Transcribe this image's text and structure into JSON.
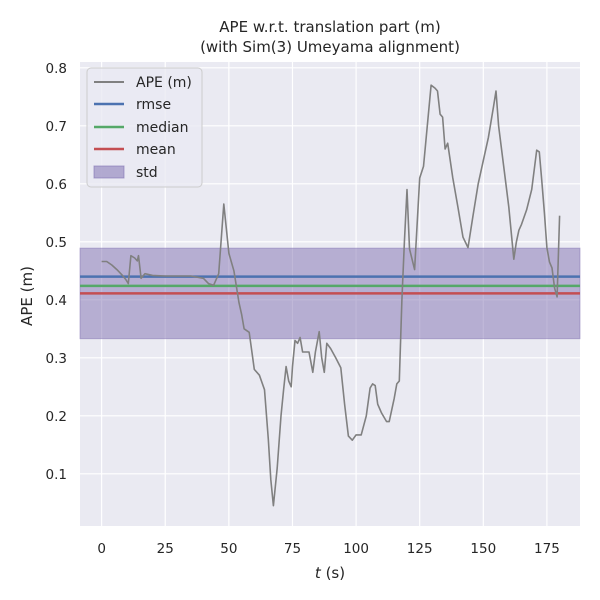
{
  "chart_data": {
    "type": "line",
    "title_line1": "APE w.r.t. translation part (m)",
    "title_line2": "(with Sim(3) Umeyama alignment)",
    "xlabel_var": "t",
    "xlabel_unit": " (s)",
    "ylabel": "APE (m)",
    "xlim": [
      -8.5,
      188
    ],
    "ylim": [
      0.01,
      0.81
    ],
    "x_ticks": [
      0,
      25,
      50,
      75,
      100,
      125,
      150,
      175
    ],
    "x_tick_labels": [
      "0",
      "25",
      "50",
      "75",
      "100",
      "125",
      "150",
      "175"
    ],
    "y_ticks": [
      0.1,
      0.2,
      0.3,
      0.4,
      0.5,
      0.6,
      0.7,
      0.8
    ],
    "y_tick_labels": [
      "0.1",
      "0.2",
      "0.3",
      "0.4",
      "0.5",
      "0.6",
      "0.7",
      "0.8"
    ],
    "grid": true,
    "legend_position": "top-left",
    "legend": [
      "APE (m)",
      "rmse",
      "median",
      "mean",
      "std"
    ],
    "colors": {
      "ape": "#808080",
      "rmse": "#4c72b0",
      "median": "#55a868",
      "mean": "#c44e52",
      "std": "#8172b2",
      "background": "#eaeaf2"
    },
    "rmse": 0.44,
    "median": 0.424,
    "mean": 0.411,
    "std_band": [
      0.333,
      0.489
    ],
    "series": [
      {
        "name": "APE (m)",
        "x": [
          0,
          2,
          4,
          6,
          8,
          9.5,
          10.5,
          11.5,
          13,
          14,
          14.5,
          15.5,
          17,
          20,
          25,
          30,
          35,
          40,
          42,
          44,
          46,
          48,
          50,
          52,
          54,
          55,
          56,
          58,
          60,
          62,
          64,
          65.5,
          66.5,
          67.5,
          69,
          70.5,
          71.5,
          72.5,
          73.5,
          74.5,
          75,
          76,
          77,
          78,
          79,
          80,
          81.5,
          83,
          84,
          85.5,
          86.5,
          87.5,
          88.5,
          90,
          92,
          94,
          95.5,
          97,
          98.5,
          100,
          101,
          102,
          104,
          105.5,
          106.5,
          107.5,
          108.5,
          110,
          112,
          113,
          115,
          116,
          117,
          118,
          119,
          120,
          121,
          123,
          125,
          126.5,
          128,
          129.5,
          131,
          132,
          133,
          134,
          135,
          136,
          138,
          140,
          142,
          144,
          146,
          148,
          150,
          152,
          154,
          155,
          156,
          158,
          160,
          162,
          163,
          164,
          165,
          167,
          169,
          171,
          172,
          173,
          174,
          175,
          176,
          177,
          178,
          179,
          180
        ],
        "y": [
          0.466,
          0.466,
          0.46,
          0.452,
          0.443,
          0.435,
          0.428,
          0.476,
          0.472,
          0.467,
          0.476,
          0.437,
          0.445,
          0.442,
          0.441,
          0.441,
          0.441,
          0.437,
          0.428,
          0.425,
          0.445,
          0.565,
          0.48,
          0.45,
          0.395,
          0.375,
          0.35,
          0.344,
          0.28,
          0.27,
          0.245,
          0.16,
          0.09,
          0.045,
          0.11,
          0.2,
          0.245,
          0.285,
          0.26,
          0.25,
          0.285,
          0.33,
          0.325,
          0.335,
          0.31,
          0.31,
          0.31,
          0.275,
          0.31,
          0.345,
          0.3,
          0.275,
          0.325,
          0.316,
          0.3,
          0.283,
          0.22,
          0.165,
          0.158,
          0.167,
          0.167,
          0.167,
          0.2,
          0.248,
          0.255,
          0.252,
          0.22,
          0.205,
          0.19,
          0.19,
          0.23,
          0.255,
          0.26,
          0.4,
          0.5,
          0.59,
          0.488,
          0.452,
          0.61,
          0.63,
          0.7,
          0.77,
          0.765,
          0.76,
          0.72,
          0.715,
          0.66,
          0.67,
          0.61,
          0.56,
          0.508,
          0.49,
          0.546,
          0.6,
          0.64,
          0.68,
          0.733,
          0.76,
          0.7,
          0.63,
          0.56,
          0.47,
          0.5,
          0.52,
          0.53,
          0.555,
          0.59,
          0.658,
          0.655,
          0.605,
          0.55,
          0.49,
          0.465,
          0.455,
          0.42,
          0.405,
          0.545
        ]
      }
    ]
  }
}
